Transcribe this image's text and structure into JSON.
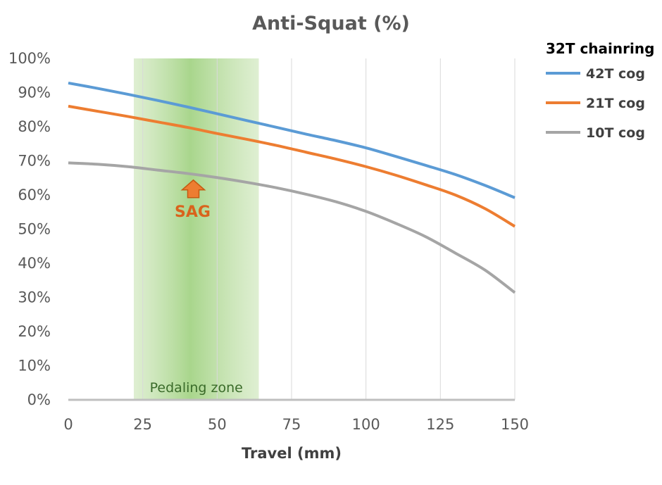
{
  "chart_data": {
    "type": "line",
    "title": "Anti-Squat (%)",
    "xlabel": "Travel (mm)",
    "ylabel": "",
    "xlim": [
      0,
      150
    ],
    "ylim": [
      0,
      100
    ],
    "x_ticks": [
      "0",
      "25",
      "50",
      "75",
      "100",
      "125",
      "150"
    ],
    "y_ticks": [
      "0%",
      "10%",
      "20%",
      "30%",
      "40%",
      "50%",
      "60%",
      "70%",
      "80%",
      "90%",
      "100%"
    ],
    "grid": "vertical",
    "legend_title": "32T chainring",
    "legend_position": "right",
    "x": [
      0,
      10,
      20,
      30,
      40,
      50,
      60,
      70,
      80,
      90,
      100,
      110,
      120,
      130,
      140,
      150
    ],
    "series": [
      {
        "name": "42T cog",
        "color": "#5b9bd5",
        "values": [
          92.8,
          91.2,
          89.5,
          87.7,
          85.8,
          83.8,
          81.8,
          79.8,
          77.8,
          75.9,
          73.8,
          71.3,
          68.7,
          66.0,
          62.8,
          59.2
        ]
      },
      {
        "name": "21T cog",
        "color": "#ed7d31",
        "values": [
          86.0,
          84.5,
          83.0,
          81.4,
          79.8,
          78.0,
          76.3,
          74.5,
          72.5,
          70.5,
          68.3,
          65.8,
          63.0,
          60.0,
          56.0,
          50.8
        ]
      },
      {
        "name": "10T cog",
        "color": "#a5a5a5",
        "values": [
          69.4,
          69.0,
          68.3,
          67.3,
          66.3,
          65.1,
          63.7,
          62.1,
          60.2,
          58.0,
          55.2,
          51.7,
          47.8,
          43.0,
          38.0,
          31.4
        ]
      }
    ],
    "annotations": {
      "pedaling_zone": {
        "label": "Pedaling zone",
        "x_range": [
          22,
          64
        ],
        "peak_x": 41,
        "color": "#c9e4b4"
      },
      "sag": {
        "label": "SAG",
        "x": 42,
        "y": 65,
        "color": "#ed7d31"
      }
    }
  }
}
